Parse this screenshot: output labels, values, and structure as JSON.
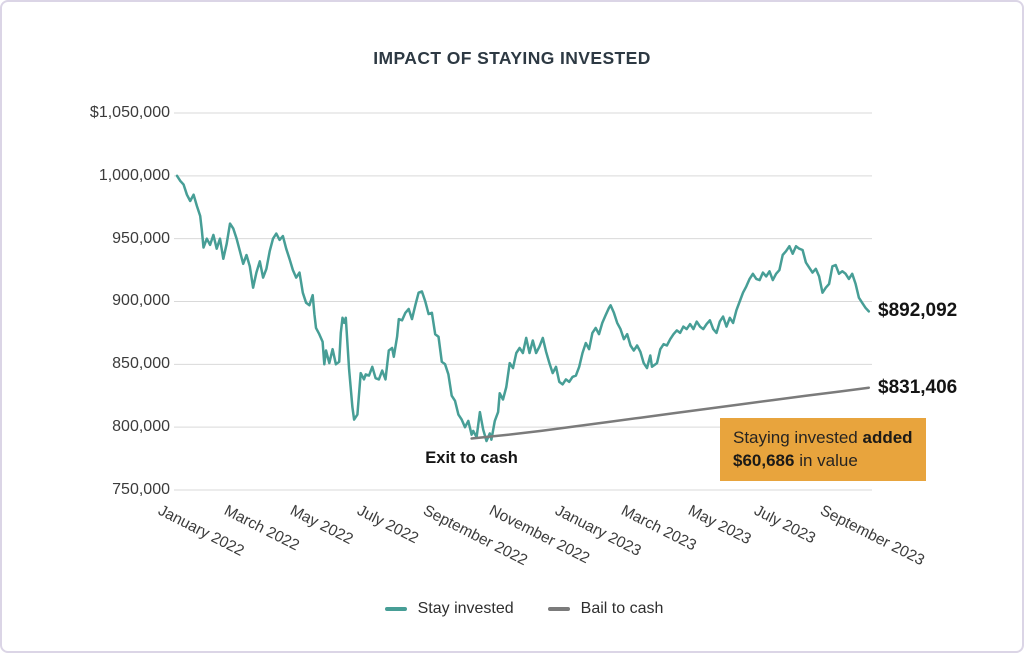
{
  "title": "IMPACT OF STAYING INVESTED",
  "annotations": {
    "exit_label": "Exit to cash",
    "stay_end_value": "$892,092",
    "bail_end_value": "$831,406",
    "callout": {
      "text_regular_1": "Staying invested",
      "text_bold_1": "added",
      "text_bold_2": "$60,686",
      "text_regular_2": "in value",
      "bg_color": "#e8a43d"
    }
  },
  "legend": {
    "items": [
      {
        "label": "Stay invested",
        "color": "#479e96"
      },
      {
        "label": "Bail to cash",
        "color": "#7b7b7b"
      }
    ]
  },
  "style": {
    "grid_color": "#d9d9d9",
    "title_color": "#2d3943",
    "axis_text_color": "#3b3b3b",
    "border_color": "#dbd5e6",
    "background": "#ffffff"
  },
  "chart_data": {
    "type": "line",
    "title": "IMPACT OF STAYING INVESTED",
    "xlabel": "",
    "ylabel": "",
    "grid": true,
    "legend_position": "bottom",
    "value_unit": "USD thousands",
    "x_unit": "months since January 2022",
    "ylim": [
      750,
      1050
    ],
    "xlim": [
      0,
      21
    ],
    "y_ticks": [
      {
        "value": 1050,
        "label": "$1,050,000"
      },
      {
        "value": 1000,
        "label": "1,000,000"
      },
      {
        "value": 950,
        "label": "950,000"
      },
      {
        "value": 900,
        "label": "900,000"
      },
      {
        "value": 850,
        "label": "850,000"
      },
      {
        "value": 800,
        "label": "800,000"
      },
      {
        "value": 750,
        "label": "750,000"
      }
    ],
    "x_ticks": [
      {
        "t": 0,
        "label": "January 2022"
      },
      {
        "t": 2,
        "label": "March 2022"
      },
      {
        "t": 4,
        "label": "May 2022"
      },
      {
        "t": 6,
        "label": "July 2022"
      },
      {
        "t": 8,
        "label": "September 2022"
      },
      {
        "t": 10,
        "label": "November 2022"
      },
      {
        "t": 12,
        "label": "January 2023"
      },
      {
        "t": 14,
        "label": "March 2023"
      },
      {
        "t": 16,
        "label": "May 2023"
      },
      {
        "t": 18,
        "label": "July 2023"
      },
      {
        "t": 20,
        "label": "September 2023"
      }
    ],
    "annotations": [
      {
        "type": "text",
        "text": "Exit to cash",
        "t": 8.9,
        "value": 791
      },
      {
        "type": "callout",
        "text": "Staying invested added $60,686 in value"
      },
      {
        "type": "end_value",
        "series": "Stay invested",
        "text": "$892,092"
      },
      {
        "type": "end_value",
        "series": "Bail to cash",
        "text": "$831,406"
      }
    ],
    "series": [
      {
        "name": "Stay invested",
        "color": "#479e96",
        "final_value": 892.092,
        "points": [
          [
            0,
            1000
          ],
          [
            0.1,
            996
          ],
          [
            0.2,
            993
          ],
          [
            0.3,
            985
          ],
          [
            0.4,
            980
          ],
          [
            0.5,
            985
          ],
          [
            0.6,
            976
          ],
          [
            0.7,
            968
          ],
          [
            0.75,
            957
          ],
          [
            0.8,
            943
          ],
          [
            0.9,
            950
          ],
          [
            1,
            945
          ],
          [
            1.1,
            953
          ],
          [
            1.2,
            942
          ],
          [
            1.3,
            950
          ],
          [
            1.4,
            934
          ],
          [
            1.5,
            946
          ],
          [
            1.6,
            962
          ],
          [
            1.7,
            958
          ],
          [
            1.8,
            950
          ],
          [
            1.9,
            940
          ],
          [
            2,
            930
          ],
          [
            2.1,
            937
          ],
          [
            2.2,
            928
          ],
          [
            2.3,
            911
          ],
          [
            2.4,
            923
          ],
          [
            2.5,
            932
          ],
          [
            2.6,
            919
          ],
          [
            2.7,
            926
          ],
          [
            2.8,
            940
          ],
          [
            2.9,
            950
          ],
          [
            3,
            954
          ],
          [
            3.1,
            949
          ],
          [
            3.2,
            952
          ],
          [
            3.3,
            942
          ],
          [
            3.4,
            934
          ],
          [
            3.5,
            925
          ],
          [
            3.6,
            919
          ],
          [
            3.7,
            923
          ],
          [
            3.8,
            907
          ],
          [
            3.9,
            899
          ],
          [
            4,
            897
          ],
          [
            4.1,
            905
          ],
          [
            4.15,
            890
          ],
          [
            4.2,
            879
          ],
          [
            4.3,
            874
          ],
          [
            4.4,
            868
          ],
          [
            4.45,
            850
          ],
          [
            4.5,
            861
          ],
          [
            4.6,
            851
          ],
          [
            4.7,
            862
          ],
          [
            4.8,
            850
          ],
          [
            4.9,
            852
          ],
          [
            4.95,
            875
          ],
          [
            5,
            887
          ],
          [
            5.05,
            883
          ],
          [
            5.1,
            887
          ],
          [
            5.2,
            846
          ],
          [
            5.3,
            816
          ],
          [
            5.35,
            806
          ],
          [
            5.45,
            810
          ],
          [
            5.55,
            843
          ],
          [
            5.65,
            838
          ],
          [
            5.7,
            842
          ],
          [
            5.8,
            841
          ],
          [
            5.9,
            848
          ],
          [
            6,
            839
          ],
          [
            6.1,
            838
          ],
          [
            6.2,
            845
          ],
          [
            6.3,
            838
          ],
          [
            6.4,
            861
          ],
          [
            6.5,
            863
          ],
          [
            6.55,
            856
          ],
          [
            6.65,
            872
          ],
          [
            6.7,
            886
          ],
          [
            6.8,
            885
          ],
          [
            6.9,
            891
          ],
          [
            7,
            894
          ],
          [
            7.1,
            886
          ],
          [
            7.2,
            897
          ],
          [
            7.3,
            907
          ],
          [
            7.4,
            908
          ],
          [
            7.5,
            900
          ],
          [
            7.6,
            890
          ],
          [
            7.7,
            891
          ],
          [
            7.8,
            874
          ],
          [
            7.9,
            872
          ],
          [
            8,
            852
          ],
          [
            8.1,
            850
          ],
          [
            8.2,
            842
          ],
          [
            8.3,
            825
          ],
          [
            8.4,
            821
          ],
          [
            8.5,
            810
          ],
          [
            8.6,
            806
          ],
          [
            8.7,
            800
          ],
          [
            8.8,
            805
          ],
          [
            8.9,
            794
          ],
          [
            8.95,
            797
          ],
          [
            9.05,
            792
          ],
          [
            9.15,
            812
          ],
          [
            9.25,
            798
          ],
          [
            9.35,
            789
          ],
          [
            9.45,
            795
          ],
          [
            9.5,
            790
          ],
          [
            9.6,
            805
          ],
          [
            9.7,
            812
          ],
          [
            9.75,
            827
          ],
          [
            9.85,
            822
          ],
          [
            9.95,
            832
          ],
          [
            10.05,
            851
          ],
          [
            10.15,
            847
          ],
          [
            10.25,
            859
          ],
          [
            10.35,
            863
          ],
          [
            10.45,
            859
          ],
          [
            10.55,
            871
          ],
          [
            10.65,
            859
          ],
          [
            10.75,
            869
          ],
          [
            10.85,
            859
          ],
          [
            10.95,
            864
          ],
          [
            11.05,
            871
          ],
          [
            11.15,
            860
          ],
          [
            11.25,
            851
          ],
          [
            11.35,
            843
          ],
          [
            11.45,
            848
          ],
          [
            11.55,
            836
          ],
          [
            11.65,
            834
          ],
          [
            11.75,
            838
          ],
          [
            11.85,
            836
          ],
          [
            11.95,
            840
          ],
          [
            12.05,
            841
          ],
          [
            12.15,
            848
          ],
          [
            12.25,
            859
          ],
          [
            12.35,
            867
          ],
          [
            12.45,
            862
          ],
          [
            12.55,
            875
          ],
          [
            12.65,
            879
          ],
          [
            12.75,
            874
          ],
          [
            12.85,
            883
          ],
          [
            12.95,
            889
          ],
          [
            13.05,
            895
          ],
          [
            13.1,
            897
          ],
          [
            13.2,
            891
          ],
          [
            13.3,
            883
          ],
          [
            13.4,
            878
          ],
          [
            13.5,
            870
          ],
          [
            13.6,
            874
          ],
          [
            13.7,
            865
          ],
          [
            13.8,
            861
          ],
          [
            13.9,
            865
          ],
          [
            14,
            860
          ],
          [
            14.1,
            851
          ],
          [
            14.2,
            847
          ],
          [
            14.3,
            857
          ],
          [
            14.35,
            848
          ],
          [
            14.5,
            851
          ],
          [
            14.6,
            862
          ],
          [
            14.7,
            866
          ],
          [
            14.8,
            865
          ],
          [
            14.9,
            870
          ],
          [
            15,
            874
          ],
          [
            15.1,
            877
          ],
          [
            15.2,
            875
          ],
          [
            15.3,
            880
          ],
          [
            15.4,
            878
          ],
          [
            15.5,
            882
          ],
          [
            15.6,
            878
          ],
          [
            15.7,
            884
          ],
          [
            15.8,
            880
          ],
          [
            15.9,
            878
          ],
          [
            16,
            882
          ],
          [
            16.1,
            885
          ],
          [
            16.2,
            878
          ],
          [
            16.3,
            875
          ],
          [
            16.4,
            884
          ],
          [
            16.5,
            888
          ],
          [
            16.6,
            880
          ],
          [
            16.7,
            887
          ],
          [
            16.8,
            883
          ],
          [
            16.9,
            893
          ],
          [
            17,
            900
          ],
          [
            17.1,
            907
          ],
          [
            17.2,
            912
          ],
          [
            17.3,
            918
          ],
          [
            17.4,
            922
          ],
          [
            17.5,
            918
          ],
          [
            17.6,
            917
          ],
          [
            17.7,
            923
          ],
          [
            17.8,
            920
          ],
          [
            17.9,
            924
          ],
          [
            18,
            917
          ],
          [
            18.1,
            922
          ],
          [
            18.2,
            925
          ],
          [
            18.3,
            937
          ],
          [
            18.4,
            940
          ],
          [
            18.5,
            944
          ],
          [
            18.6,
            938
          ],
          [
            18.7,
            944
          ],
          [
            18.8,
            942
          ],
          [
            18.9,
            941
          ],
          [
            19,
            931
          ],
          [
            19.1,
            927
          ],
          [
            19.2,
            923
          ],
          [
            19.3,
            926
          ],
          [
            19.4,
            920
          ],
          [
            19.5,
            907
          ],
          [
            19.6,
            911
          ],
          [
            19.7,
            914
          ],
          [
            19.8,
            928
          ],
          [
            19.9,
            929
          ],
          [
            20,
            922
          ],
          [
            20.1,
            924
          ],
          [
            20.2,
            922
          ],
          [
            20.3,
            918
          ],
          [
            20.4,
            922
          ],
          [
            20.5,
            914
          ],
          [
            20.6,
            903
          ],
          [
            20.7,
            899
          ],
          [
            20.8,
            895
          ],
          [
            20.9,
            892.092
          ]
        ]
      },
      {
        "name": "Bail to cash",
        "color": "#7b7b7b",
        "final_value": 831.406,
        "points": [
          [
            8.9,
            791
          ],
          [
            10,
            794
          ],
          [
            11,
            797
          ],
          [
            12,
            800.5
          ],
          [
            13,
            804
          ],
          [
            14,
            807.5
          ],
          [
            15,
            811
          ],
          [
            16,
            814.5
          ],
          [
            17,
            818
          ],
          [
            18,
            821.5
          ],
          [
            19,
            825
          ],
          [
            20,
            828.3
          ],
          [
            20.9,
            831.406
          ]
        ]
      }
    ]
  }
}
